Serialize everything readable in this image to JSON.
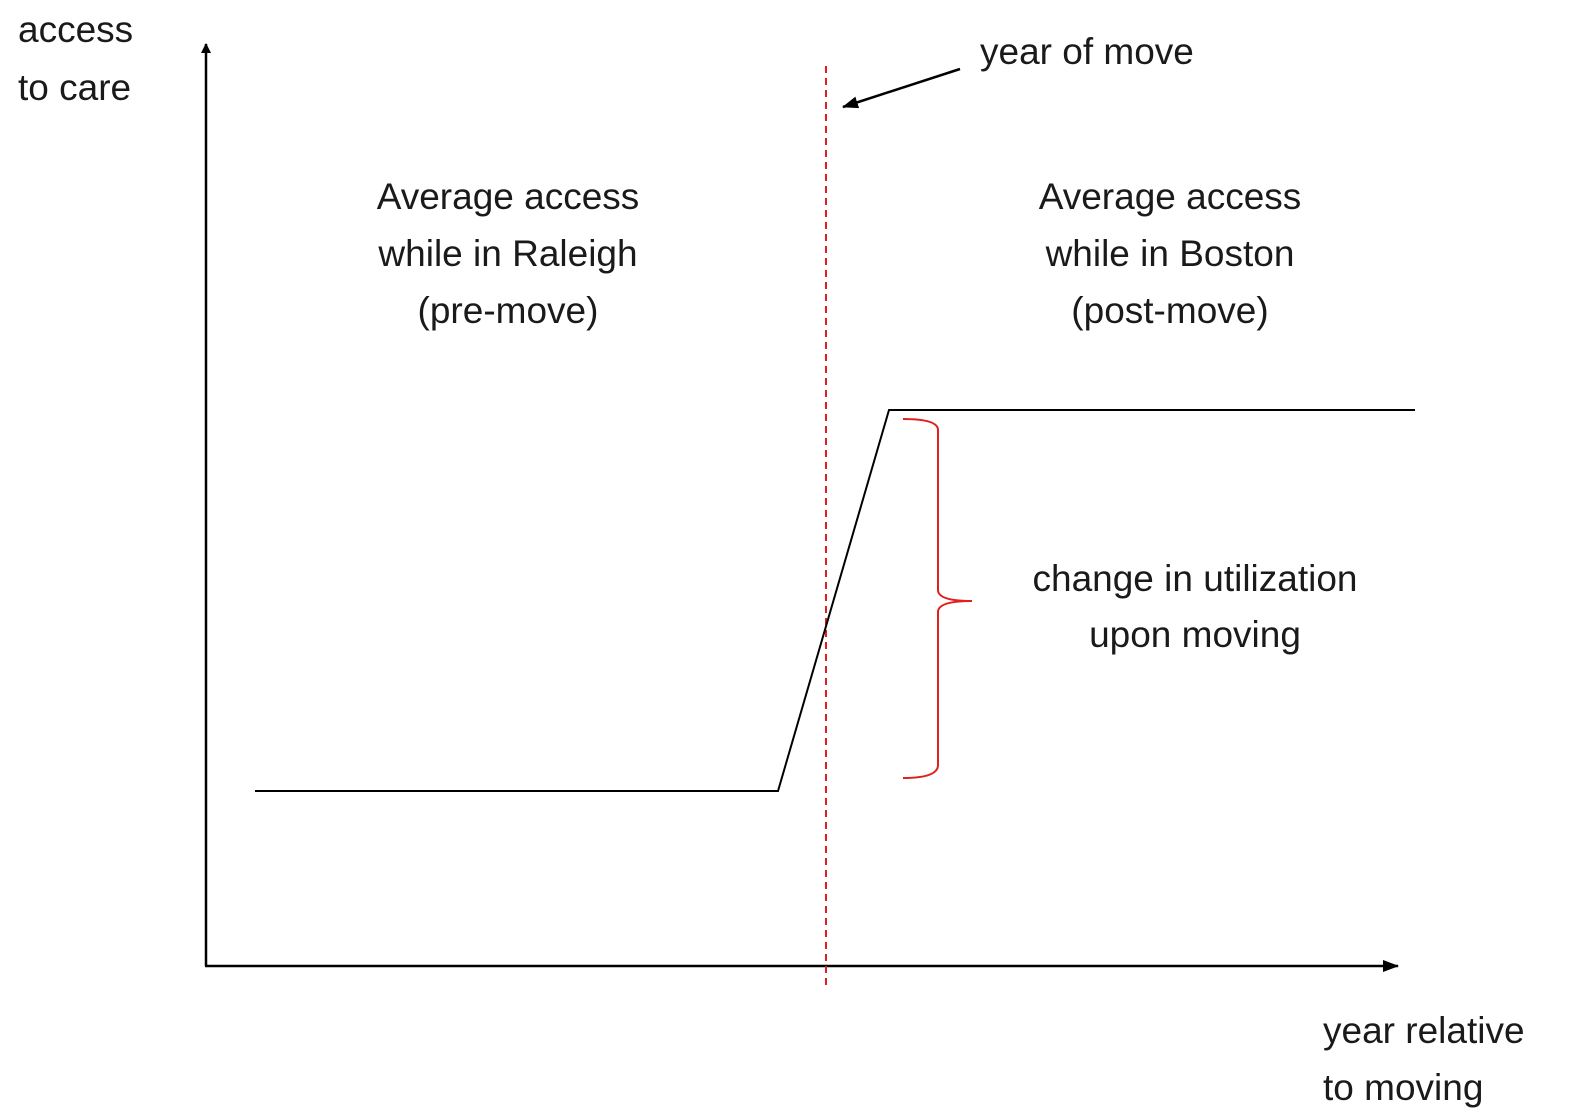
{
  "axes": {
    "y_label": [
      "access",
      "to care"
    ],
    "x_label": [
      "year relative",
      "to moving"
    ]
  },
  "annotations": {
    "year_of_move": "year of move",
    "pre_move": [
      "Average access",
      "while in Raleigh",
      "(pre-move)"
    ],
    "post_move": [
      "Average access",
      "while in Boston",
      "(post-move)"
    ],
    "change": [
      "change in utilization",
      "upon moving"
    ]
  }
}
